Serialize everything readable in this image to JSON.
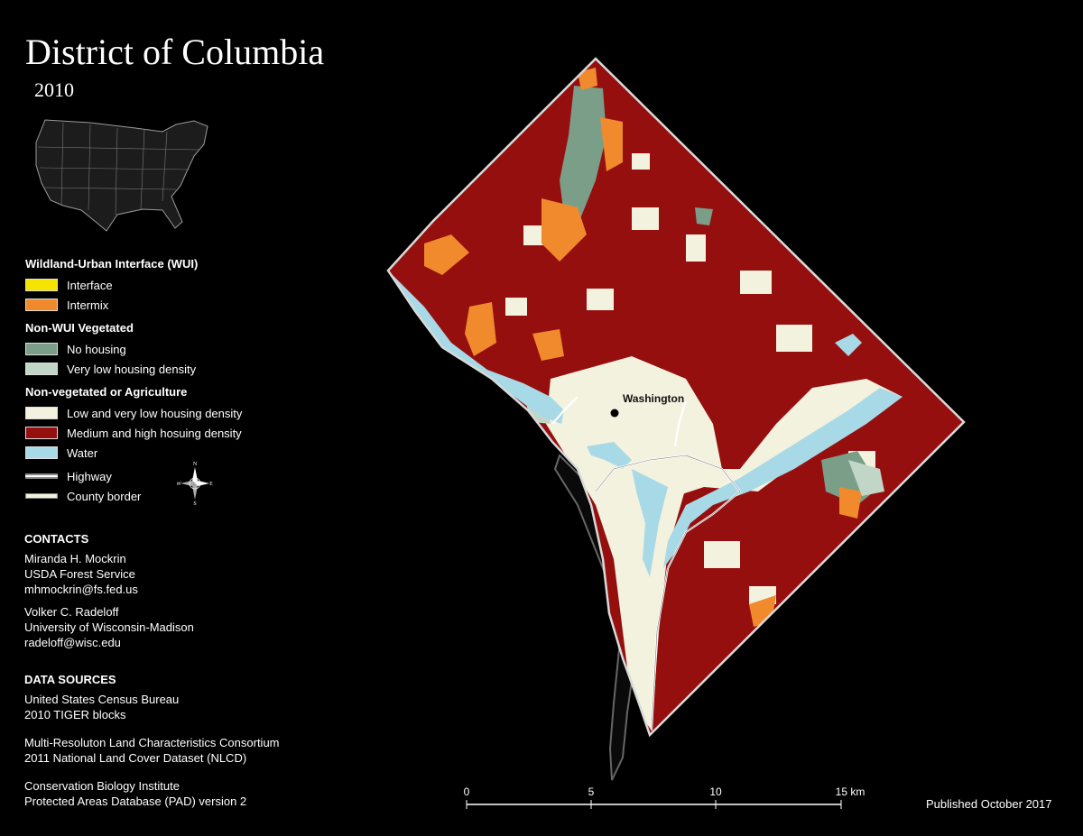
{
  "title": "District of Columbia",
  "year": "2010",
  "inset_icon": "us-map-icon",
  "legend": {
    "wui_heading": "Wildland-Urban Interface (WUI)",
    "wui_items": [
      {
        "label": "Interface",
        "color": "#f5e400"
      },
      {
        "label": "Intermix",
        "color": "#f08a2c"
      }
    ],
    "nonwui_veg_heading": "Non-WUI Vegetated",
    "nonwui_veg_items": [
      {
        "label": "No housing",
        "color": "#7a9e88"
      },
      {
        "label": "Very low housing density",
        "color": "#c2d6c8"
      }
    ],
    "nonveg_heading": "Non-vegetated or Agriculture",
    "nonveg_items": [
      {
        "label": "Low and very low housing density",
        "color": "#f3f2de"
      },
      {
        "label": "Medium and high hosuing density",
        "color": "#950f0f"
      },
      {
        "label": "Water",
        "color": "#a8d9e6"
      }
    ],
    "line_items": [
      {
        "label": "Highway"
      },
      {
        "label": "County border"
      }
    ]
  },
  "compass_icon": "compass-rose-icon",
  "compass_letters": {
    "n": "N",
    "s": "S",
    "e": "E",
    "w": "W"
  },
  "contacts": {
    "heading": "CONTACTS",
    "people": [
      {
        "name": "Miranda H. Mockrin",
        "org": "USDA Forest Service",
        "email": "mhmockrin@fs.fed.us"
      },
      {
        "name": "Volker C. Radeloff",
        "org": "University of Wisconsin-Madison",
        "email": "radeloff@wisc.edu"
      }
    ]
  },
  "data_sources": {
    "heading": "DATA SOURCES",
    "sources": [
      {
        "line1": "United States Census Bureau",
        "line2": "2010 TIGER blocks"
      },
      {
        "line1": "Multi-Resoluton Land Characteristics Consortium",
        "line2": "2011 National Land Cover Dataset (NLCD)"
      },
      {
        "line1": "Conservation Biology Institute",
        "line2": "Protected Areas Database (PAD) version 2"
      }
    ]
  },
  "map": {
    "city_label": "Washington"
  },
  "scale_bar": {
    "ticks": [
      "0",
      "5",
      "10",
      "15 km"
    ]
  },
  "published": "Published October 2017"
}
